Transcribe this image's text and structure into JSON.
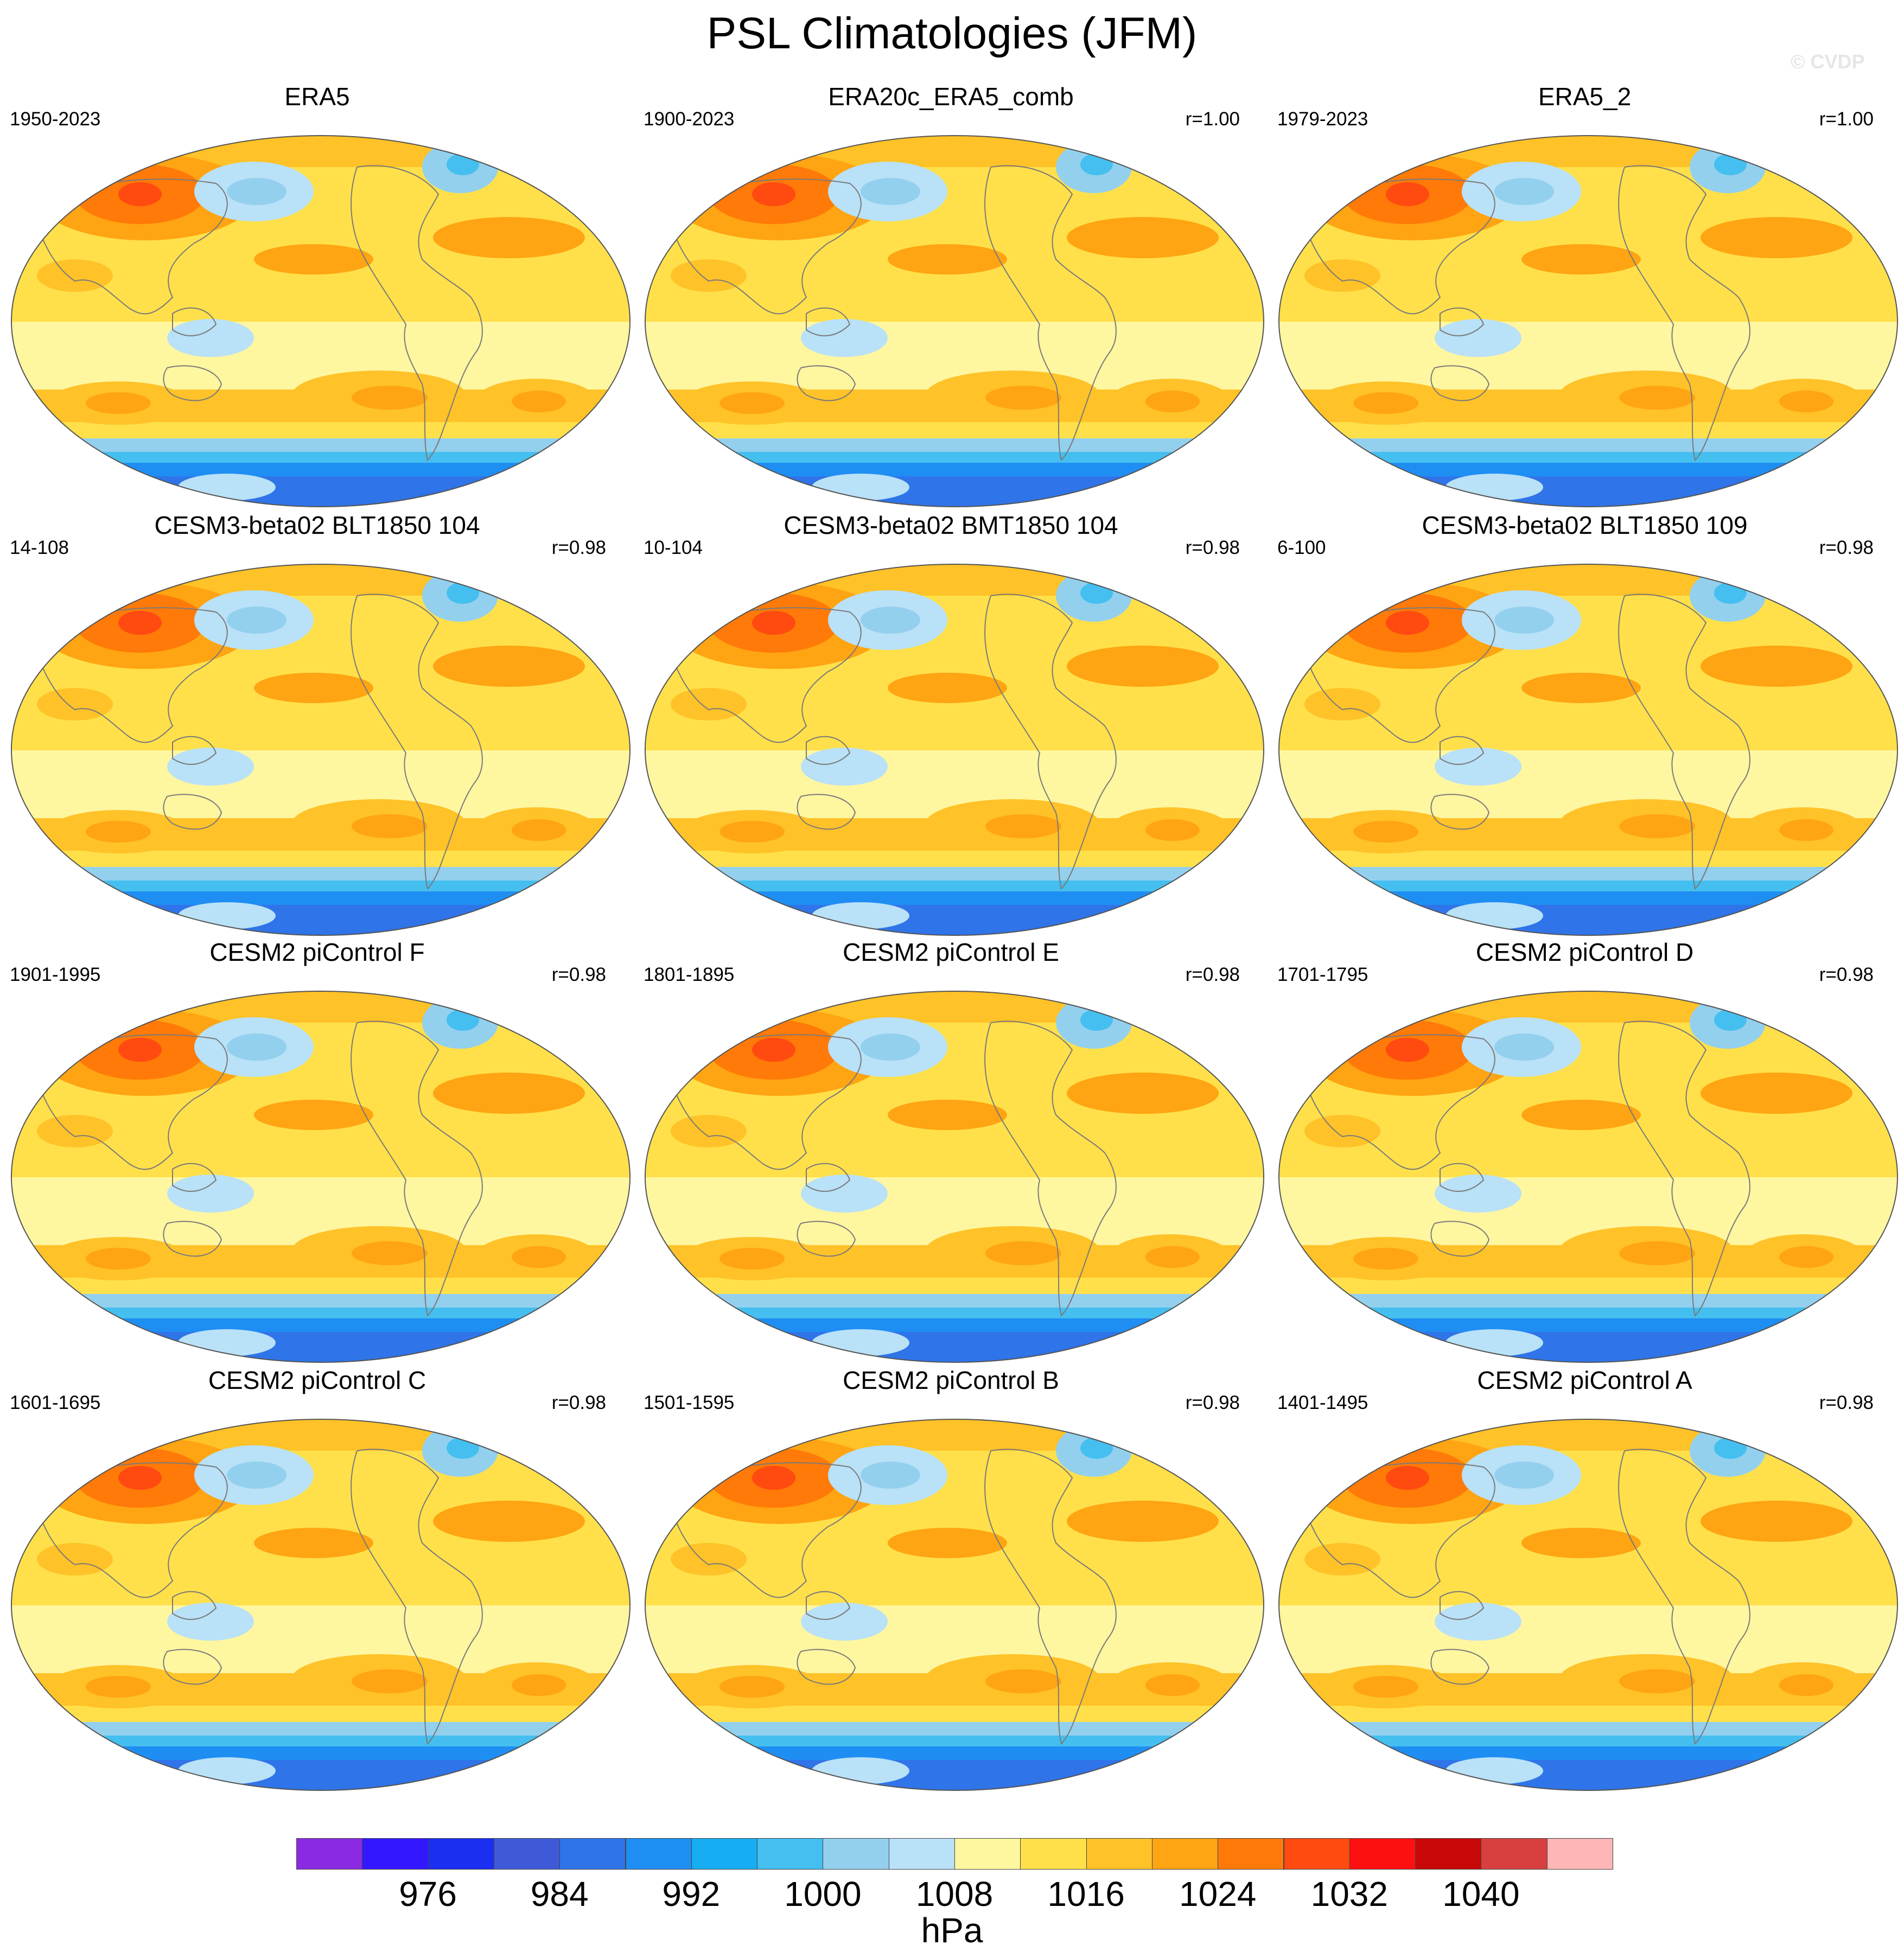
{
  "title": "PSL Climatologies (JFM)",
  "credit": "© CVDP",
  "panels": [
    {
      "title": "ERA5",
      "years": "1950-2023",
      "corr": ""
    },
    {
      "title": "ERA20c_ERA5_comb",
      "years": "1900-2023",
      "corr": "r=1.00"
    },
    {
      "title": "ERA5_2",
      "years": "1979-2023",
      "corr": "r=1.00"
    },
    {
      "title": "CESM3-beta02 BLT1850 104",
      "years": "14-108",
      "corr": "r=0.98"
    },
    {
      "title": "CESM3-beta02 BMT1850 104",
      "years": "10-104",
      "corr": "r=0.98"
    },
    {
      "title": "CESM3-beta02 BLT1850 109",
      "years": "6-100",
      "corr": "r=0.98"
    },
    {
      "title": "CESM2 piControl F",
      "years": "1901-1995",
      "corr": "r=0.98"
    },
    {
      "title": "CESM2 piControl E",
      "years": "1801-1895",
      "corr": "r=0.98"
    },
    {
      "title": "CESM2 piControl D",
      "years": "1701-1795",
      "corr": "r=0.98"
    },
    {
      "title": "CESM2 piControl C",
      "years": "1601-1695",
      "corr": "r=0.98"
    },
    {
      "title": "CESM2 piControl B",
      "years": "1501-1595",
      "corr": "r=0.98"
    },
    {
      "title": "CESM2 piControl A",
      "years": "1401-1495",
      "corr": "r=0.98"
    }
  ],
  "chart_data": {
    "type": "heatmap",
    "title": "PSL Climatologies (JFM)",
    "projection": "global ellipse (Robinson-like), Pacific-centered",
    "colorbar": {
      "units": "hPa",
      "levels": [
        972,
        976,
        980,
        984,
        988,
        992,
        996,
        1000,
        1004,
        1008,
        1012,
        1016,
        1020,
        1024,
        1028,
        1032,
        1036,
        1040
      ],
      "tick_labels": [
        "976",
        "984",
        "992",
        "1000",
        "1008",
        "1016",
        "1024",
        "1032",
        "1040"
      ],
      "tick_values": [
        976,
        984,
        992,
        1000,
        1008,
        1016,
        1024,
        1032,
        1040
      ],
      "colors": [
        "#8a2be2",
        "#3318ff",
        "#1b2ff0",
        "#3f5ad9",
        "#2f74e8",
        "#1f8ef3",
        "#16adf2",
        "#44bff0",
        "#93d0ee",
        "#b9e1f7",
        "#fff6a0",
        "#ffe04a",
        "#ffc228",
        "#ffa412",
        "#ff7a08",
        "#ff4a10",
        "#ff1010",
        "#c80808",
        "#d84040",
        "#ffb6b6"
      ]
    },
    "field_color_indices": {
      "polar_south": 4,
      "southern_trough": 7,
      "subpolar_south": 9,
      "subtropical_high_south": 13,
      "subtropical_south": 12,
      "tropics": 10,
      "north_subtropics": 12,
      "aleutian_low": 8,
      "icelandic_low": 7,
      "siberian_high": 15
    }
  },
  "colors": {
    "background": "#ffffff",
    "land_outline": "#7a7a7a",
    "map_border": "#555555"
  }
}
